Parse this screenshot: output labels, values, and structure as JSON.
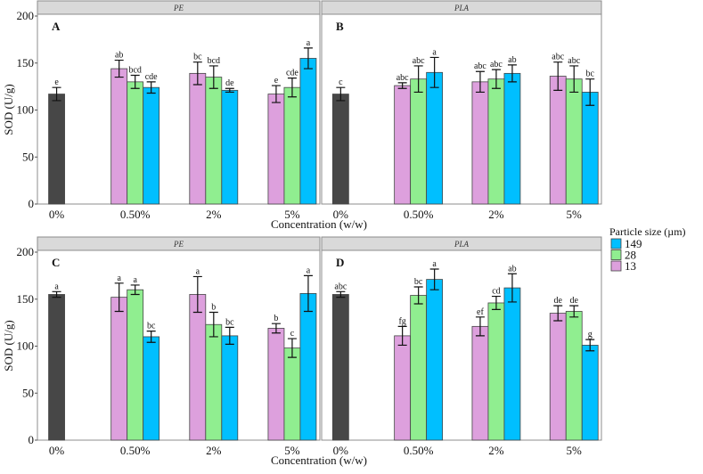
{
  "chart_data": {
    "type": "bar",
    "ylabel": "SOD (U/g)",
    "xlabel": "Concentration (w/w)",
    "ylim": [
      0,
      200
    ],
    "yticks": [
      "0",
      "50",
      "100",
      "150",
      "200"
    ],
    "categories": [
      "0%",
      "0.50%",
      "2%",
      "5%"
    ],
    "legend": {
      "title": "Particle size (µm)",
      "placement": "right",
      "entries": [
        {
          "label": "149",
          "color": "#00bfff"
        },
        {
          "label": "28",
          "color": "#90ee90"
        },
        {
          "label": "13",
          "color": "#dda0dd"
        }
      ]
    },
    "control_color": "#474747",
    "series_order": [
      "13",
      "28",
      "149"
    ],
    "panels": [
      {
        "id": "A",
        "facet": "PE",
        "control": {
          "value": 117,
          "err": 7,
          "letter": "e"
        },
        "groups": [
          {
            "values": [
              144,
              130,
              124
            ],
            "errs": [
              9,
              7,
              6
            ],
            "letters": [
              "ab",
              "bcd",
              "cde"
            ]
          },
          {
            "values": [
              139,
              135,
              121
            ],
            "errs": [
              12,
              12,
              2
            ],
            "letters": [
              "bc",
              "bcd",
              "de"
            ]
          },
          {
            "values": [
              117,
              124,
              155
            ],
            "errs": [
              9,
              10,
              11
            ],
            "letters": [
              "e",
              "cde",
              "a"
            ]
          }
        ]
      },
      {
        "id": "B",
        "facet": "PLA",
        "control": {
          "value": 117,
          "err": 7,
          "letter": "c"
        },
        "groups": [
          {
            "values": [
              126,
              133,
              140
            ],
            "errs": [
              3,
              14,
              16
            ],
            "letters": [
              "abc",
              "abc",
              "a"
            ]
          },
          {
            "values": [
              130,
              133,
              139
            ],
            "errs": [
              11,
              10,
              9
            ],
            "letters": [
              "abc",
              "abc",
              "ab"
            ]
          },
          {
            "values": [
              136,
              133,
              119
            ],
            "errs": [
              15,
              14,
              14
            ],
            "letters": [
              "abc",
              "abc",
              "bc"
            ]
          }
        ]
      },
      {
        "id": "C",
        "facet": "PE",
        "control": {
          "value": 155,
          "err": 3,
          "letter": "a"
        },
        "groups": [
          {
            "values": [
              152,
              160,
              110
            ],
            "errs": [
              15,
              5,
              6
            ],
            "letters": [
              "a",
              "a",
              "bc"
            ]
          },
          {
            "values": [
              155,
              123,
              111
            ],
            "errs": [
              19,
              13,
              9
            ],
            "letters": [
              "a",
              "b",
              "bc"
            ]
          },
          {
            "values": [
              119,
              98,
              156
            ],
            "errs": [
              5,
              10,
              19
            ],
            "letters": [
              "b",
              "c",
              "a"
            ]
          }
        ]
      },
      {
        "id": "D",
        "facet": "PLA",
        "control": {
          "value": 155,
          "err": 3,
          "letter": "abc"
        },
        "groups": [
          {
            "values": [
              111,
              154,
              171
            ],
            "errs": [
              10,
              9,
              11
            ],
            "letters": [
              "fg",
              "bc",
              "a"
            ]
          },
          {
            "values": [
              121,
              146,
              162
            ],
            "errs": [
              10,
              7,
              15
            ],
            "letters": [
              "ef",
              "cd",
              "ab"
            ]
          },
          {
            "values": [
              135,
              137,
              101
            ],
            "errs": [
              8,
              6,
              6
            ],
            "letters": [
              "de",
              "de",
              "g"
            ]
          }
        ]
      }
    ]
  }
}
